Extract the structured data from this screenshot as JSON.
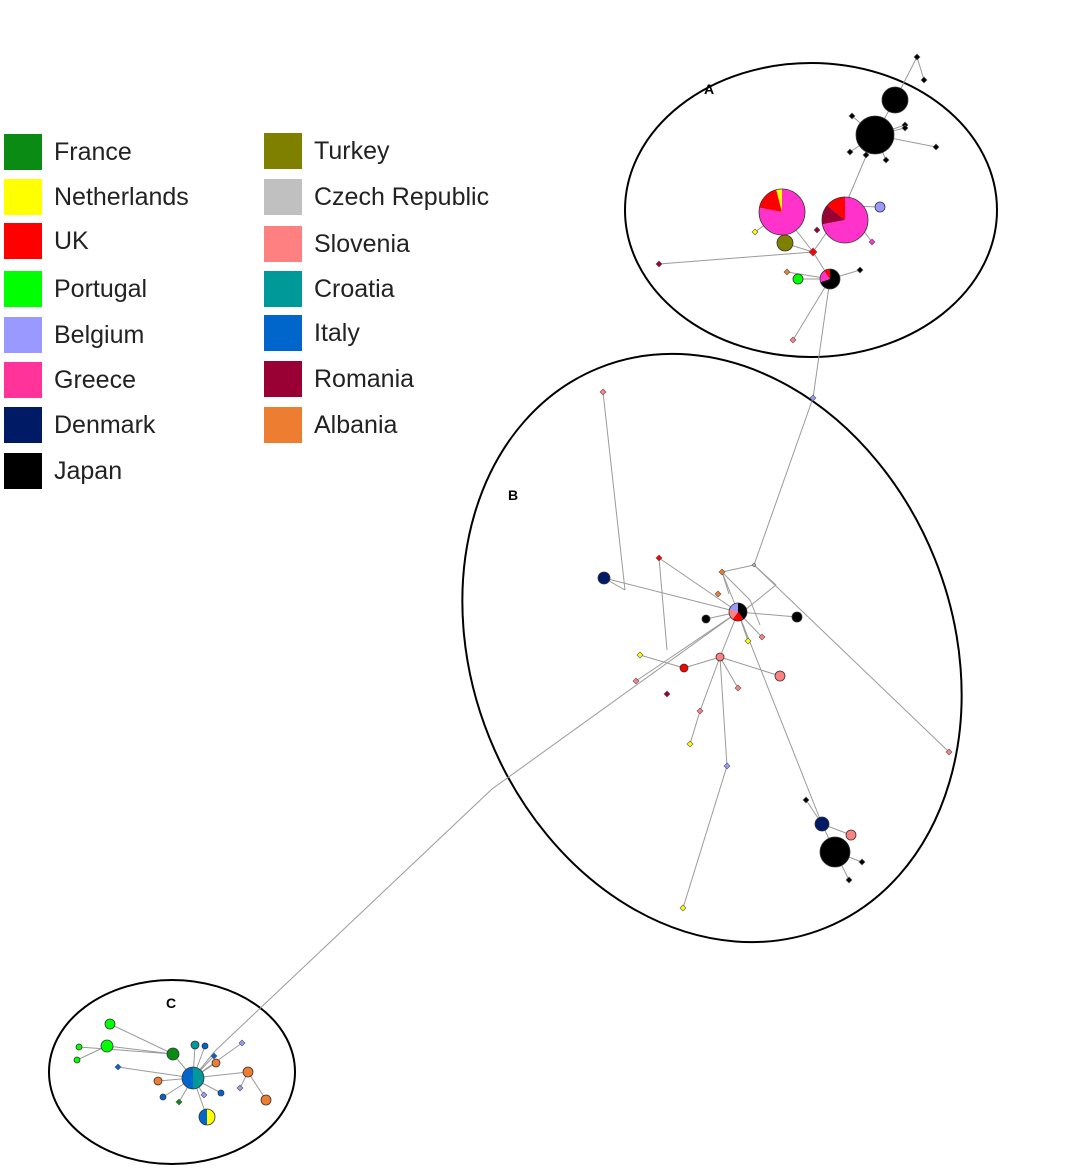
{
  "legend": [
    {
      "label": "France",
      "color": "#0a8c14"
    },
    {
      "label": "Netherlands",
      "color": "#ffff00"
    },
    {
      "label": "UK",
      "color": "#ff0000"
    },
    {
      "label": "Portugal",
      "color": "#00ff00"
    },
    {
      "label": "Belgium",
      "color": "#9999ff"
    },
    {
      "label": "Greece",
      "color": "#ff3399"
    },
    {
      "label": "Denmark",
      "color": "#001a66"
    },
    {
      "label": "Japan",
      "color": "#000000"
    },
    {
      "label": "Turkey",
      "color": "#808000"
    },
    {
      "label": "Czech Republic",
      "color": "#c0c0c0"
    },
    {
      "label": "Slovenia",
      "color": "#ff8080"
    },
    {
      "label": "Croatia",
      "color": "#009999"
    },
    {
      "label": "Italy",
      "color": "#0066cc"
    },
    {
      "label": "Romania",
      "color": "#990033"
    },
    {
      "label": "Albania",
      "color": "#ed7d31"
    }
  ],
  "clusters": [
    {
      "id": "A",
      "label": "A"
    },
    {
      "id": "B",
      "label": "B"
    },
    {
      "id": "C",
      "label": "C"
    }
  ]
}
